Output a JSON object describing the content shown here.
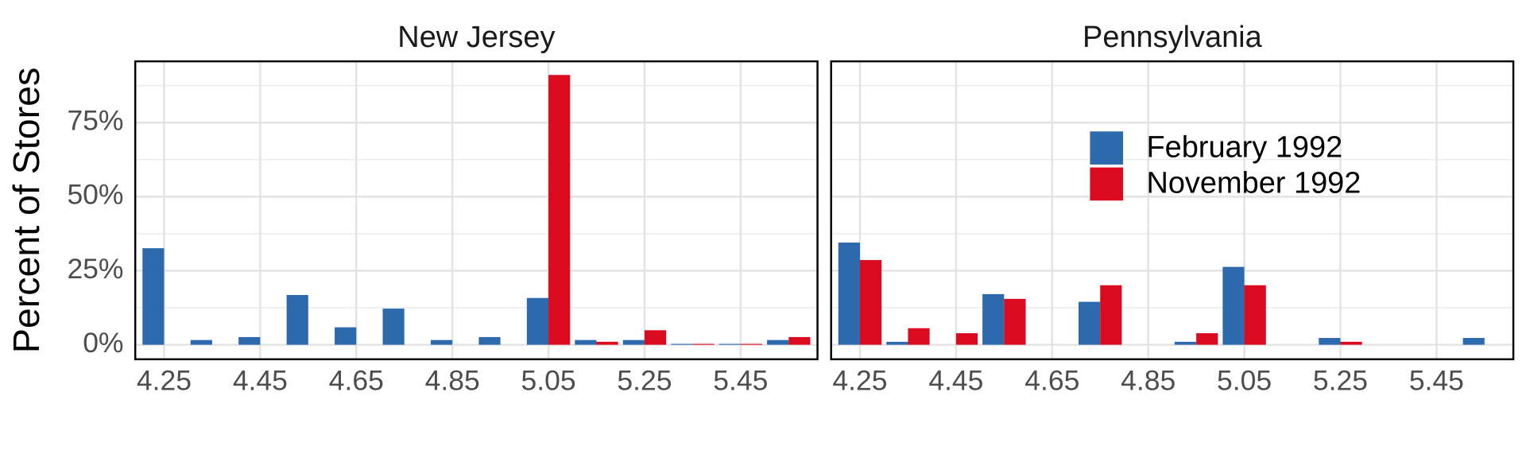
{
  "chart_data": {
    "type": "bar",
    "ylabel": "Percent of Stores",
    "x": [
      4.25,
      4.35,
      4.45,
      4.55,
      4.65,
      4.75,
      4.85,
      4.95,
      5.05,
      5.15,
      5.25,
      5.35,
      5.45,
      5.55
    ],
    "xlim": [
      4.19,
      5.61
    ],
    "xticks": [
      4.25,
      4.45,
      4.65,
      4.85,
      5.05,
      5.25,
      5.45
    ],
    "ylim": [
      -4.9,
      95.7
    ],
    "yticks": [
      {
        "value": 0,
        "label": "0%"
      },
      {
        "value": 25,
        "label": "25%"
      },
      {
        "value": 50,
        "label": "50%"
      },
      {
        "value": 75,
        "label": "75%"
      }
    ],
    "minor_yticks": [
      12.5,
      37.5,
      62.5,
      87.5
    ],
    "grid": true,
    "legend": "inside",
    "series": [
      {
        "name": "February 1992",
        "color": "#2c6aad"
      },
      {
        "name": "November 1992",
        "color": "#dc0a1e"
      }
    ],
    "panels": [
      {
        "title": "New Jersey",
        "values": [
          [
            32.6,
            1.6,
            2.6,
            16.8,
            5.9,
            12.2,
            1.6,
            2.6,
            15.8,
            1.6,
            1.6,
            0.3,
            0.3,
            1.6
          ],
          [
            0,
            0,
            0,
            0,
            0,
            0,
            0,
            0,
            91.1,
            1.0,
            4.9,
            0.3,
            0.3,
            2.6
          ]
        ]
      },
      {
        "title": "Pennsylvania",
        "values": [
          [
            34.5,
            1.0,
            0,
            17.1,
            0,
            14.5,
            0,
            1.0,
            26.3,
            0,
            2.3,
            0,
            0,
            2.3
          ],
          [
            28.6,
            5.6,
            3.9,
            15.5,
            0,
            20.1,
            0,
            3.9,
            20.1,
            0,
            1.0,
            0,
            0,
            0
          ]
        ]
      }
    ]
  }
}
